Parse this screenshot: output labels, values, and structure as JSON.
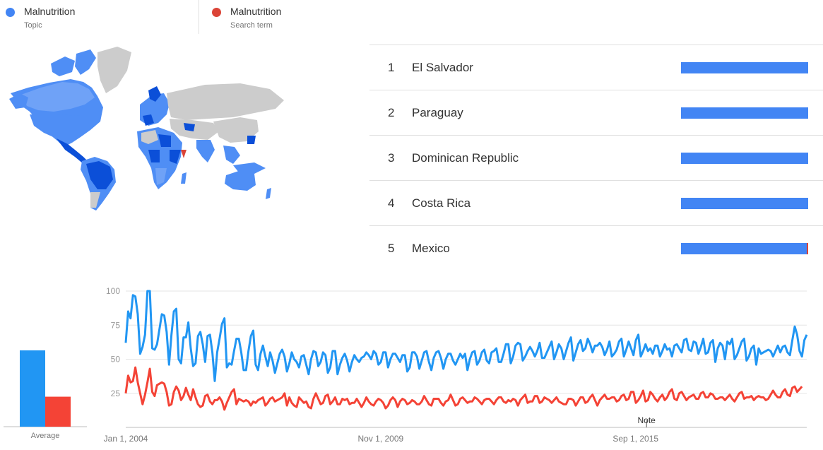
{
  "legend": {
    "terms": [
      {
        "name": "Malnutrition",
        "type": "Topic",
        "color": "#4285f4"
      },
      {
        "name": "Malnutrition",
        "type": "Search term",
        "color": "#db4437"
      }
    ]
  },
  "map": {
    "description_icon": "world-choropleth-map",
    "colors": {
      "low": "#a6c6fb",
      "mid": "#4f8ef5",
      "high": "#0b4fd8",
      "none": "#cccccc"
    }
  },
  "ranking": [
    {
      "rank": "1",
      "country": "El Salvador",
      "topic_share": 100,
      "term_share": 0
    },
    {
      "rank": "2",
      "country": "Paraguay",
      "topic_share": 100,
      "term_share": 0
    },
    {
      "rank": "3",
      "country": "Dominican Republic",
      "topic_share": 100,
      "term_share": 0
    },
    {
      "rank": "4",
      "country": "Costa Rica",
      "topic_share": 100,
      "term_share": 0
    },
    {
      "rank": "5",
      "country": "Mexico",
      "topic_share": 99,
      "term_share": 1
    }
  ],
  "average": {
    "label": "Average",
    "topic": 56,
    "term": 22,
    "colors": [
      "#2196f3",
      "#f44336"
    ]
  },
  "chart_data": {
    "type": "line",
    "ylim": [
      0,
      100
    ],
    "yticks": [
      100,
      75,
      50,
      25
    ],
    "xticks": [
      {
        "label": "Jan 1, 2004",
        "x": 0
      },
      {
        "label": "Nov 1, 2009",
        "x": 70
      },
      {
        "label": "Sep 1, 2015",
        "x": 140
      }
    ],
    "annotation": {
      "label": "Note",
      "x": 143
    },
    "grid": true,
    "series": [
      {
        "name": "Malnutrition",
        "color": "#2196f3",
        "values": [
          62,
          85,
          80,
          97,
          96,
          83,
          54,
          59,
          68,
          100,
          100,
          58,
          57,
          61,
          72,
          83,
          82,
          70,
          46,
          68,
          85,
          87,
          50,
          47,
          66,
          66,
          77,
          58,
          45,
          47,
          67,
          70,
          61,
          48,
          67,
          68,
          55,
          34,
          55,
          65,
          76,
          80,
          44,
          47,
          46,
          56,
          65,
          65,
          55,
          42,
          42,
          56,
          67,
          71,
          46,
          42,
          54,
          60,
          52,
          45,
          55,
          49,
          40,
          47,
          54,
          57,
          52,
          41,
          47,
          55,
          50,
          48,
          44,
          52,
          53,
          46,
          39,
          50,
          56,
          55,
          45,
          48,
          55,
          53,
          40,
          44,
          56,
          56,
          39,
          46,
          51,
          54,
          49,
          41,
          48,
          53,
          50,
          48,
          51,
          52,
          55,
          53,
          50,
          56,
          54,
          46,
          48,
          55,
          55,
          44,
          50,
          54,
          54,
          51,
          48,
          53,
          53,
          41,
          44,
          55,
          55,
          52,
          43,
          49,
          55,
          56,
          48,
          42,
          51,
          55,
          56,
          51,
          43,
          50,
          54,
          54,
          49,
          46,
          50,
          54,
          51,
          54,
          42,
          50,
          55,
          56,
          46,
          49,
          55,
          57,
          49,
          47,
          55,
          56,
          58,
          48,
          48,
          54,
          61,
          61,
          47,
          52,
          60,
          62,
          61,
          49,
          52,
          56,
          59,
          56,
          52,
          56,
          62,
          51,
          51,
          55,
          59,
          63,
          50,
          55,
          61,
          58,
          50,
          56,
          62,
          66,
          49,
          55,
          61,
          64,
          56,
          58,
          65,
          61,
          55,
          60,
          60,
          62,
          59,
          53,
          57,
          63,
          52,
          54,
          57,
          63,
          65,
          52,
          57,
          63,
          58,
          53,
          64,
          68,
          52,
          56,
          61,
          56,
          58,
          54,
          60,
          60,
          52,
          56,
          61,
          57,
          58,
          52,
          60,
          61,
          58,
          55,
          64,
          65,
          57,
          56,
          63,
          62,
          54,
          59,
          65,
          54,
          55,
          62,
          64,
          48,
          58,
          62,
          60,
          50,
          63,
          61,
          65,
          50,
          53,
          58,
          63,
          65,
          49,
          52,
          58,
          60,
          46,
          58,
          54,
          55,
          56,
          57,
          56,
          52,
          56,
          60,
          55,
          59,
          60,
          55,
          53,
          64,
          74,
          68,
          56,
          52,
          64,
          68
        ]
      },
      {
        "name": "Malnutrition",
        "color": "#f44336",
        "values": [
          25,
          38,
          33,
          34,
          44,
          33,
          25,
          17,
          24,
          33,
          43,
          26,
          23,
          31,
          32,
          33,
          32,
          26,
          16,
          17,
          26,
          30,
          27,
          20,
          23,
          29,
          24,
          20,
          28,
          22,
          17,
          15,
          16,
          23,
          24,
          19,
          17,
          20,
          20,
          22,
          19,
          13,
          18,
          22,
          26,
          28,
          17,
          21,
          20,
          19,
          20,
          19,
          16,
          19,
          18,
          20,
          21,
          22,
          16,
          18,
          21,
          22,
          19,
          20,
          21,
          22,
          25,
          16,
          22,
          18,
          16,
          15,
          22,
          20,
          18,
          19,
          15,
          14,
          21,
          25,
          21,
          17,
          18,
          23,
          24,
          17,
          19,
          22,
          17,
          17,
          21,
          20,
          21,
          17,
          18,
          18,
          21,
          18,
          15,
          18,
          22,
          19,
          17,
          16,
          19,
          21,
          20,
          18,
          14,
          16,
          20,
          22,
          20,
          15,
          19,
          21,
          20,
          17,
          18,
          20,
          19,
          17,
          17,
          19,
          23,
          20,
          17,
          16,
          21,
          21,
          21,
          18,
          16,
          19,
          20,
          24,
          20,
          16,
          17,
          21,
          22,
          20,
          18,
          19,
          19,
          22,
          21,
          19,
          17,
          20,
          21,
          21,
          19,
          17,
          20,
          22,
          22,
          19,
          18,
          20,
          19,
          21,
          20,
          16,
          20,
          22,
          24,
          18,
          19,
          19,
          23,
          23,
          18,
          19,
          22,
          21,
          20,
          18,
          20,
          22,
          19,
          18,
          17,
          17,
          21,
          21,
          20,
          16,
          19,
          22,
          22,
          18,
          19,
          22,
          24,
          20,
          16,
          20,
          22,
          24,
          21,
          21,
          22,
          22,
          19,
          20,
          23,
          24,
          20,
          21,
          26,
          26,
          18,
          20,
          23,
          27,
          19,
          20,
          26,
          24,
          21,
          19,
          22,
          24,
          20,
          22,
          26,
          28,
          21,
          20,
          25,
          26,
          23,
          20,
          22,
          23,
          24,
          21,
          21,
          25,
          26,
          22,
          22,
          25,
          24,
          21,
          21,
          22,
          22,
          20,
          22,
          24,
          21,
          19,
          22,
          25,
          26,
          21,
          22,
          22,
          23,
          20,
          22,
          23,
          22,
          22,
          20,
          21,
          24,
          27,
          24,
          22,
          22,
          26,
          28,
          24,
          23,
          29,
          30,
          26,
          28,
          30
        ]
      }
    ]
  }
}
